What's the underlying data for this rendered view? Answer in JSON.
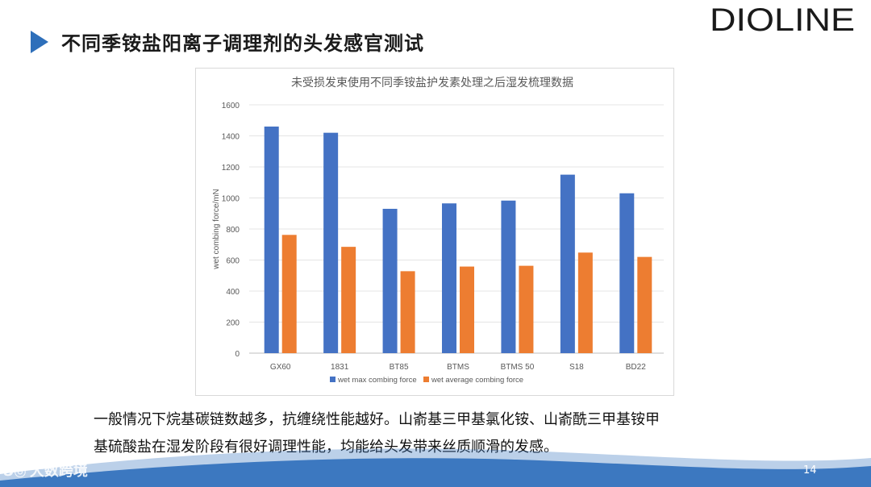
{
  "slide": {
    "title": "不同季铵盐阳离子调理剂的头发感官测试",
    "logo_text": "DIOLINE",
    "page_number": "14",
    "watermark": "大数跨境"
  },
  "body": {
    "lines": [
      "一般情况下烷基碳链数越多，抗缠绕性能越好。山嵛基三甲基氯化铵、山嵛酰三甲基铵甲",
      "基硫酸盐在湿发阶段有很好调理性能，均能给头发带来丝质顺滑的发感。"
    ]
  },
  "colors": {
    "accent": "#2e6fba",
    "series_max": "#4472c4",
    "series_avg": "#ed7d31",
    "footer_wave": "#3c78c0"
  },
  "chart_data": {
    "type": "bar",
    "title": "未受损发束使用不同季铵盐护发素处理之后湿发梳理数据",
    "xlabel": "",
    "ylabel": "wet combing force/mN",
    "ylim": [
      0,
      1600
    ],
    "yticks": [
      0,
      200,
      400,
      600,
      800,
      1000,
      1200,
      1400,
      1600
    ],
    "grid": true,
    "legend_position": "bottom",
    "categories": [
      "GX60",
      "1831",
      "BT85",
      "BTMS",
      "BTMS 50",
      "S18",
      "BD22"
    ],
    "series": [
      {
        "name": "wet max combing force",
        "color": "#4472c4",
        "values": [
          1460,
          1420,
          930,
          965,
          983,
          1150,
          1030
        ]
      },
      {
        "name": "wet average combing force",
        "color": "#ed7d31",
        "values": [
          762,
          685,
          528,
          558,
          563,
          648,
          620
        ]
      }
    ]
  }
}
